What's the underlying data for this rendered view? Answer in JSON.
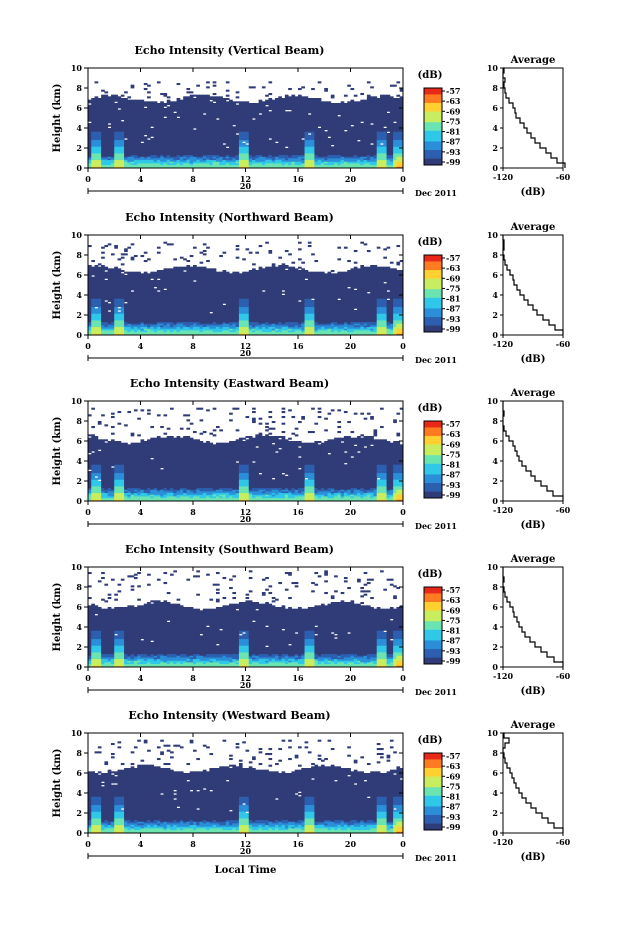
{
  "chart_data": [
    {
      "type": "heatmap",
      "title": "Echo Intensity (Vertical Beam)",
      "ylabel": "Height (km)",
      "xlabel": "",
      "xticks": [
        "0",
        "4",
        "8",
        "12",
        "16",
        "20",
        "0"
      ],
      "yticks": [
        "0",
        "2",
        "4",
        "6",
        "8",
        "10"
      ],
      "xlim": [
        0,
        24
      ],
      "ylim": [
        0,
        10
      ],
      "date_label": "20",
      "date_right": "Dec 2011",
      "colorbar": {
        "unit": "(dB)",
        "ticks": [
          "-57",
          "-63",
          "-69",
          "-75",
          "-81",
          "-87",
          "-93",
          "-99"
        ]
      },
      "top_km": 6.9,
      "scatter_km": [
        7,
        8.6
      ],
      "spikes": [
        0.6,
        2.3,
        11.8,
        16.9,
        22.3,
        23.6
      ],
      "average": {
        "title": "Average",
        "xlabel": "(dB)",
        "xticks": [
          "-120",
          "-60"
        ],
        "xlim": [
          -120,
          -60
        ],
        "yticks": [
          "0",
          "2",
          "4",
          "6",
          "8",
          "10"
        ],
        "ylim": [
          0,
          10
        ],
        "profile": [
          [
            0,
            -58
          ],
          [
            0.5,
            -66
          ],
          [
            1,
            -72
          ],
          [
            1.5,
            -77
          ],
          [
            2,
            -83
          ],
          [
            2.5,
            -88
          ],
          [
            3,
            -92
          ],
          [
            3.5,
            -96
          ],
          [
            4,
            -99
          ],
          [
            4.5,
            -103
          ],
          [
            5,
            -107
          ],
          [
            5.5,
            -108
          ],
          [
            6,
            -110
          ],
          [
            6.5,
            -114
          ],
          [
            7,
            -117
          ],
          [
            7.5,
            -118
          ],
          [
            8,
            -119
          ],
          [
            8.6,
            -118
          ],
          [
            9,
            -120
          ],
          [
            9.5,
            -119
          ],
          [
            10,
            -120
          ]
        ]
      }
    },
    {
      "type": "heatmap",
      "title": "Echo Intensity (Northward Beam)",
      "ylabel": "Height (km)",
      "xlabel": "",
      "xticks": [
        "0",
        "4",
        "8",
        "12",
        "16",
        "20",
        "0"
      ],
      "yticks": [
        "0",
        "2",
        "4",
        "6",
        "8",
        "10"
      ],
      "xlim": [
        0,
        24
      ],
      "ylim": [
        0,
        10
      ],
      "date_label": "20",
      "date_right": "Dec 2011",
      "colorbar": {
        "unit": "(dB)",
        "ticks": [
          "-57",
          "-63",
          "-69",
          "-75",
          "-81",
          "-87",
          "-93",
          "-99"
        ]
      },
      "top_km": 6.6,
      "scatter_km": [
        7,
        9.3
      ],
      "spikes": [
        0.6,
        2.3,
        11.8,
        16.9,
        22.3,
        23.6
      ],
      "average": {
        "title": "Average",
        "xlabel": "(dB)",
        "xticks": [
          "-120",
          "-60"
        ],
        "xlim": [
          -120,
          -60
        ],
        "yticks": [
          "0",
          "2",
          "4",
          "6",
          "8",
          "10"
        ],
        "ylim": [
          0,
          10
        ],
        "profile": [
          [
            0,
            -60
          ],
          [
            0.5,
            -68
          ],
          [
            1,
            -74
          ],
          [
            1.5,
            -80
          ],
          [
            2,
            -86
          ],
          [
            2.5,
            -90
          ],
          [
            3,
            -95
          ],
          [
            3.5,
            -99
          ],
          [
            4,
            -103
          ],
          [
            4.5,
            -106
          ],
          [
            5,
            -109
          ],
          [
            5.5,
            -110
          ],
          [
            6,
            -113
          ],
          [
            6.5,
            -116
          ],
          [
            7,
            -118
          ],
          [
            7.5,
            -119
          ],
          [
            8,
            -120
          ],
          [
            8.5,
            -119
          ],
          [
            9,
            -119
          ],
          [
            9.5,
            -120
          ],
          [
            10,
            -120
          ]
        ]
      }
    },
    {
      "type": "heatmap",
      "title": "Echo Intensity (Eastward Beam)",
      "ylabel": "Height (km)",
      "xlabel": "",
      "xticks": [
        "0",
        "4",
        "8",
        "12",
        "16",
        "20",
        "0"
      ],
      "yticks": [
        "0",
        "2",
        "4",
        "6",
        "8",
        "10"
      ],
      "xlim": [
        0,
        24
      ],
      "ylim": [
        0,
        10
      ],
      "date_label": "20",
      "date_right": "Dec 2011",
      "colorbar": {
        "unit": "(dB)",
        "ticks": [
          "-57",
          "-63",
          "-69",
          "-75",
          "-81",
          "-87",
          "-93",
          "-99"
        ]
      },
      "top_km": 6.2,
      "scatter_km": [
        6.5,
        9.4
      ],
      "spikes": [
        0.6,
        2.3,
        11.8,
        16.9,
        22.3,
        23.6
      ],
      "average": {
        "title": "Average",
        "xlabel": "(dB)",
        "xticks": [
          "-120",
          "-60"
        ],
        "xlim": [
          -120,
          -60
        ],
        "yticks": [
          "0",
          "2",
          "4",
          "6",
          "8",
          "10"
        ],
        "ylim": [
          0,
          10
        ],
        "profile": [
          [
            0,
            -60
          ],
          [
            0.5,
            -70
          ],
          [
            1,
            -76
          ],
          [
            1.5,
            -82
          ],
          [
            2,
            -88
          ],
          [
            2.5,
            -92
          ],
          [
            3,
            -97
          ],
          [
            3.5,
            -101
          ],
          [
            4,
            -104
          ],
          [
            4.5,
            -106
          ],
          [
            5,
            -108
          ],
          [
            5.5,
            -110
          ],
          [
            6,
            -114
          ],
          [
            6.5,
            -117
          ],
          [
            7,
            -119
          ],
          [
            7.5,
            -120
          ],
          [
            8,
            -120
          ],
          [
            8.5,
            -119
          ],
          [
            9,
            -120
          ],
          [
            9.5,
            -120
          ],
          [
            10,
            -120
          ]
        ]
      }
    },
    {
      "type": "heatmap",
      "title": "Echo Intensity (Southward Beam)",
      "ylabel": "Height (km)",
      "xlabel": "",
      "xticks": [
        "0",
        "4",
        "8",
        "12",
        "16",
        "20",
        "0"
      ],
      "yticks": [
        "0",
        "2",
        "4",
        "6",
        "8",
        "10"
      ],
      "xlim": [
        0,
        24
      ],
      "ylim": [
        0,
        10
      ],
      "date_label": "20",
      "date_right": "Dec 2011",
      "colorbar": {
        "unit": "(dB)",
        "ticks": [
          "-57",
          "-63",
          "-69",
          "-75",
          "-81",
          "-87",
          "-93",
          "-99"
        ]
      },
      "top_km": 6.2,
      "scatter_km": [
        6.5,
        9.6
      ],
      "spikes": [
        0.6,
        2.3,
        11.8,
        16.9,
        22.3,
        23.6
      ],
      "average": {
        "title": "Average",
        "xlabel": "(dB)",
        "xticks": [
          "-120",
          "-60"
        ],
        "xlim": [
          -120,
          -60
        ],
        "yticks": [
          "0",
          "2",
          "4",
          "6",
          "8",
          "10"
        ],
        "ylim": [
          0,
          10
        ],
        "profile": [
          [
            0,
            -60
          ],
          [
            0.5,
            -69
          ],
          [
            1,
            -76
          ],
          [
            1.5,
            -82
          ],
          [
            2,
            -88
          ],
          [
            2.5,
            -93
          ],
          [
            3,
            -98
          ],
          [
            3.5,
            -101
          ],
          [
            4,
            -104
          ],
          [
            4.5,
            -106
          ],
          [
            5,
            -109
          ],
          [
            5.5,
            -110
          ],
          [
            6,
            -113
          ],
          [
            6.5,
            -116
          ],
          [
            7,
            -118
          ],
          [
            7.5,
            -119
          ],
          [
            8,
            -120
          ],
          [
            8.5,
            -119
          ],
          [
            9,
            -120
          ],
          [
            9.5,
            -120
          ],
          [
            10,
            -120
          ]
        ]
      }
    },
    {
      "type": "heatmap",
      "title": "Echo Intensity (Westward Beam)",
      "ylabel": "Height (km)",
      "xlabel": "Local Time",
      "xticks": [
        "0",
        "4",
        "8",
        "12",
        "16",
        "20",
        "0"
      ],
      "yticks": [
        "0",
        "2",
        "4",
        "6",
        "8",
        "10"
      ],
      "xlim": [
        0,
        24
      ],
      "ylim": [
        0,
        10
      ],
      "date_label": "20",
      "date_right": "Dec 2011",
      "colorbar": {
        "unit": "(dB)",
        "ticks": [
          "-57",
          "-63",
          "-69",
          "-75",
          "-81",
          "-87",
          "-93",
          "-99"
        ]
      },
      "top_km": 6.4,
      "scatter_km": [
        6.6,
        9.3
      ],
      "spikes": [
        0.6,
        2.3,
        11.8,
        16.9,
        22.3,
        23.6
      ],
      "average": {
        "title": "Average",
        "xlabel": "(dB)",
        "xticks": [
          "-120",
          "-60"
        ],
        "xlim": [
          -120,
          -60
        ],
        "yticks": [
          "0",
          "2",
          "4",
          "6",
          "8",
          "10"
        ],
        "ylim": [
          0,
          10
        ],
        "profile": [
          [
            0,
            -60
          ],
          [
            0.5,
            -69
          ],
          [
            1,
            -75
          ],
          [
            1.5,
            -81
          ],
          [
            2,
            -87
          ],
          [
            2.5,
            -92
          ],
          [
            3,
            -97
          ],
          [
            3.5,
            -101
          ],
          [
            4,
            -104
          ],
          [
            4.5,
            -107
          ],
          [
            5,
            -109
          ],
          [
            5.5,
            -111
          ],
          [
            6,
            -113
          ],
          [
            6.5,
            -116
          ],
          [
            7,
            -118
          ],
          [
            7.5,
            -119
          ],
          [
            8,
            -120
          ],
          [
            8.5,
            -118
          ],
          [
            9,
            -114
          ],
          [
            9.5,
            -119
          ],
          [
            10,
            -120
          ]
        ]
      }
    }
  ],
  "colors": {
    "background": "#303c78",
    "scale": [
      "#303c78",
      "#2d5fb0",
      "#2a8fd8",
      "#30c8e8",
      "#6ae4b0",
      "#c8ee60",
      "#ffd030",
      "#ff7a20",
      "#e82818"
    ]
  }
}
